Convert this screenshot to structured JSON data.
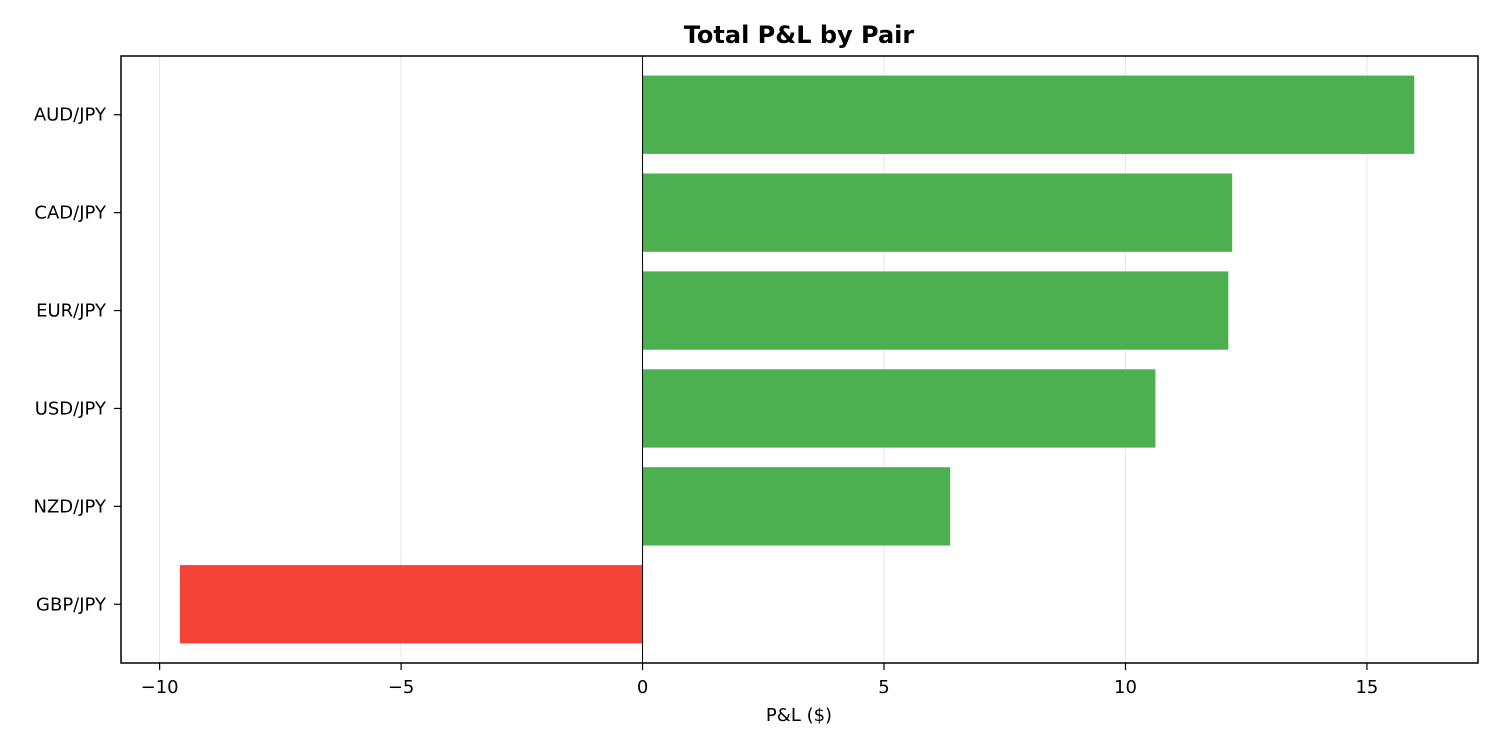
{
  "chart_data": {
    "type": "bar",
    "orientation": "horizontal",
    "title": "Total P&L by Pair",
    "xlabel": "P&L ($)",
    "ylabel": "",
    "categories": [
      "AUD/JPY",
      "CAD/JPY",
      "EUR/JPY",
      "USD/JPY",
      "NZD/JPY",
      "GBP/JPY"
    ],
    "values": [
      15.98,
      12.21,
      12.13,
      10.62,
      6.37,
      -9.58
    ],
    "xlim": [
      -10.8,
      17.3
    ],
    "xticks": [
      -10,
      -5,
      0,
      5,
      10,
      15
    ],
    "xtick_labels": [
      "−10",
      "−5",
      "0",
      "5",
      "10",
      "15"
    ],
    "grid": "vertical",
    "colors": {
      "positive": "#4caf50",
      "negative": "#f44336",
      "grid": "#e6e6e6",
      "zero_line": "#000000",
      "axes": "#000000"
    }
  }
}
